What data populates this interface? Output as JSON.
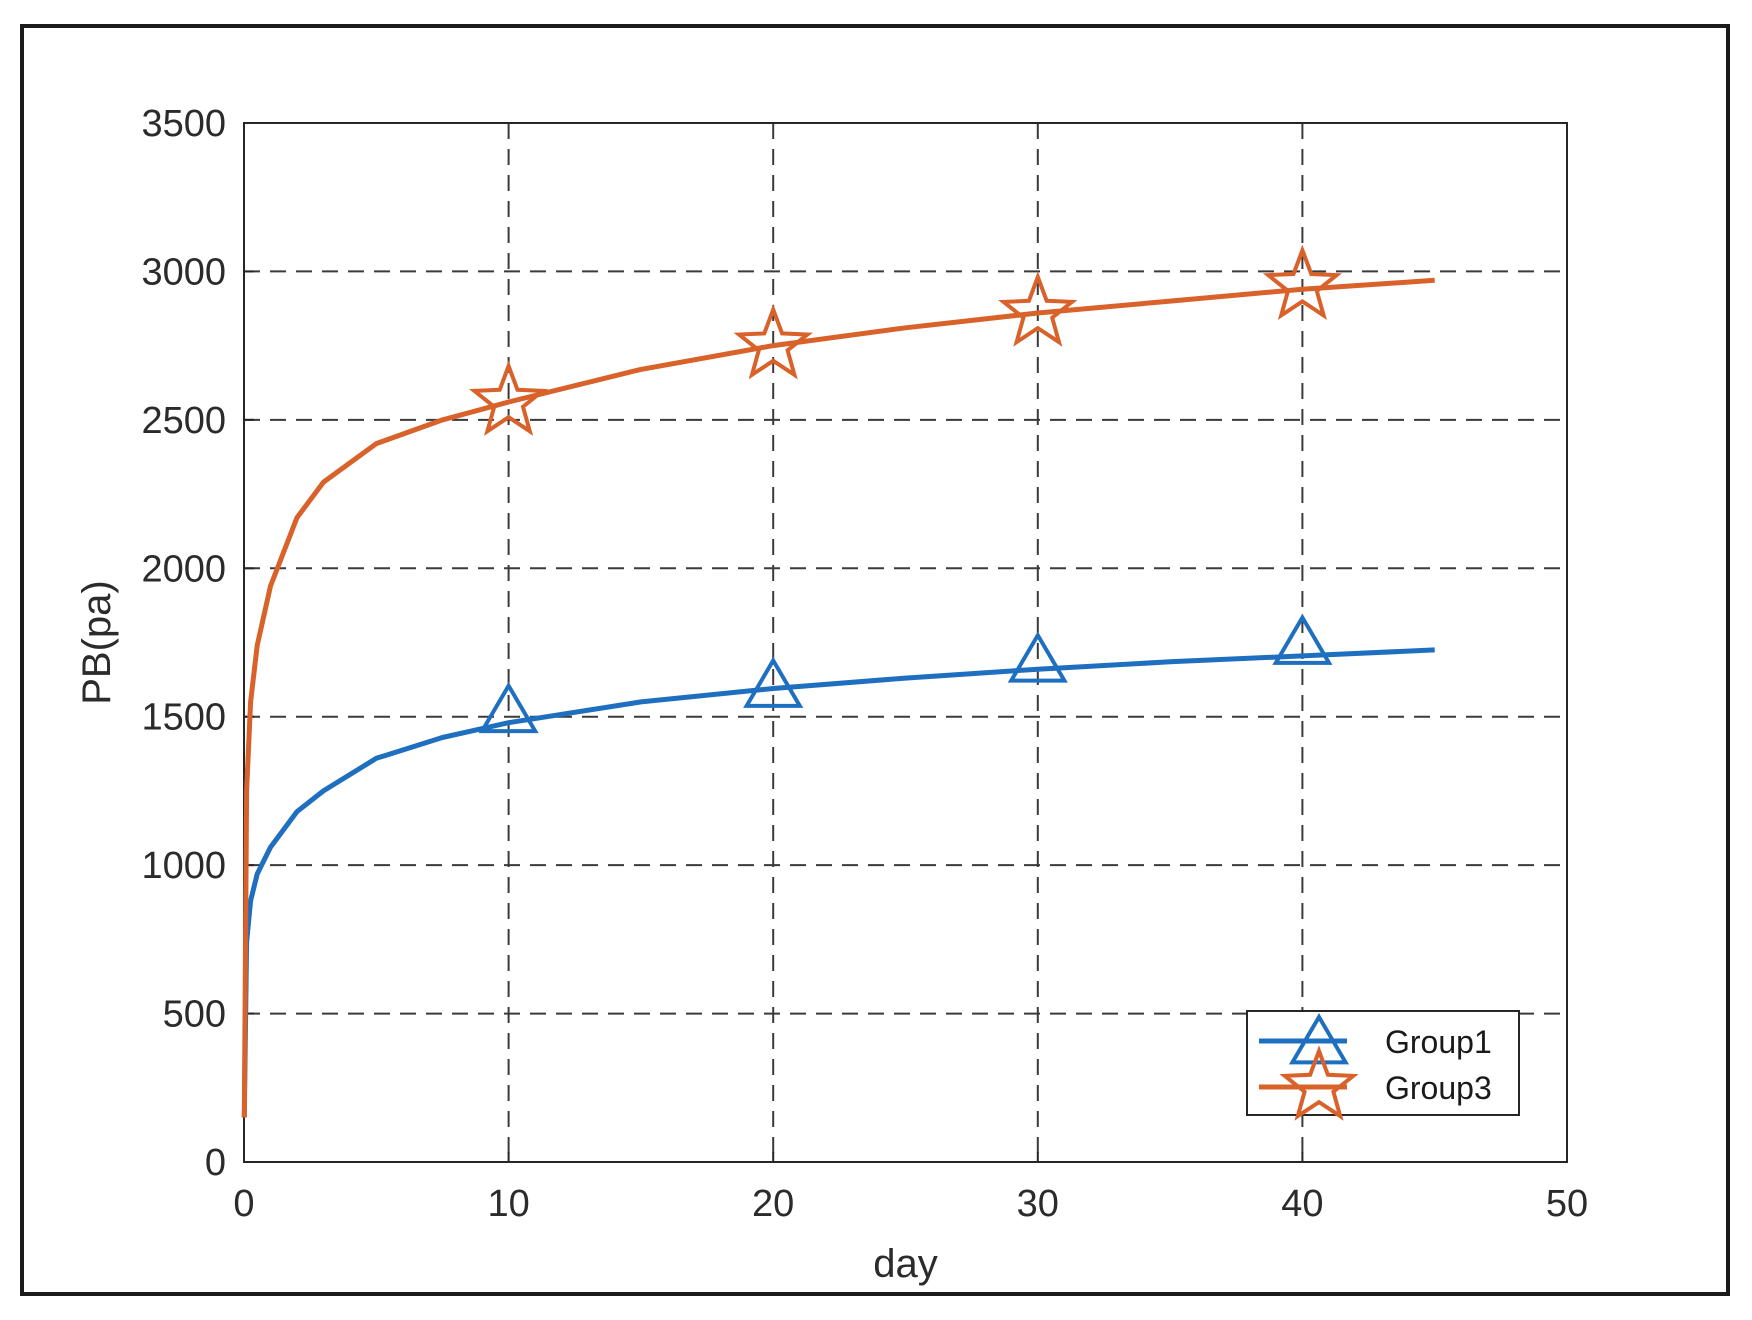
{
  "chart_data": {
    "type": "line",
    "xlabel": "day",
    "ylabel": "PB(pa)",
    "xlim": [
      0,
      50
    ],
    "ylim": [
      0,
      3500
    ],
    "xticks": [
      0,
      10,
      20,
      30,
      40,
      50
    ],
    "yticks": [
      0,
      500,
      1000,
      1500,
      2000,
      2500,
      3000,
      3500
    ],
    "xtick_labels": [
      "0",
      "10",
      "20",
      "30",
      "40",
      "50"
    ],
    "ytick_labels": [
      "0",
      "500",
      "1000",
      "1500",
      "2000",
      "2500",
      "3000",
      "3500"
    ],
    "grid": true,
    "legend_position": "bottom-right",
    "series": [
      {
        "name": "Group1",
        "color": "#1f6fc0",
        "marker": "triangle",
        "x": [
          0.01,
          0.1,
          0.25,
          0.5,
          1,
          2,
          3,
          5,
          7.5,
          10,
          15,
          20,
          25,
          30,
          35,
          40,
          45
        ],
        "y": [
          150,
          740,
          880,
          970,
          1060,
          1180,
          1250,
          1360,
          1430,
          1480,
          1550,
          1595,
          1630,
          1660,
          1685,
          1705,
          1725
        ],
        "marker_x": [
          10,
          20,
          30,
          40
        ],
        "marker_y": [
          1510,
          1595,
          1680,
          1740
        ]
      },
      {
        "name": "Group3",
        "color": "#d9622b",
        "marker": "star",
        "x": [
          0.01,
          0.1,
          0.25,
          0.5,
          1,
          2,
          3,
          5,
          7.5,
          10,
          15,
          20,
          25,
          30,
          35,
          40,
          45
        ],
        "y": [
          150,
          1250,
          1550,
          1740,
          1940,
          2170,
          2290,
          2420,
          2500,
          2560,
          2670,
          2750,
          2810,
          2860,
          2900,
          2940,
          2970
        ],
        "marker_x": [
          10,
          20,
          30,
          40
        ],
        "marker_y": [
          2560,
          2750,
          2860,
          2950
        ]
      }
    ]
  }
}
